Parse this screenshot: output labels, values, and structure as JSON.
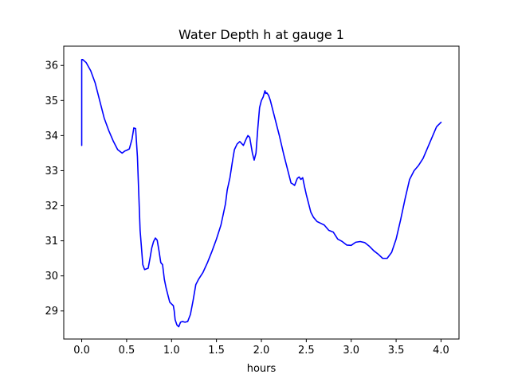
{
  "chart_data": {
    "type": "line",
    "title": "Water Depth h at gauge 1",
    "xlabel": "hours",
    "ylabel": "",
    "xlim": [
      -0.2,
      4.2
    ],
    "ylim": [
      28.2,
      36.55
    ],
    "xticks": [
      0.0,
      0.5,
      1.0,
      1.5,
      2.0,
      2.5,
      3.0,
      3.5,
      4.0
    ],
    "xtick_labels": [
      "0.0",
      "0.5",
      "1.0",
      "1.5",
      "2.0",
      "2.5",
      "3.0",
      "3.5",
      "4.0"
    ],
    "yticks": [
      29,
      30,
      31,
      32,
      33,
      34,
      35,
      36
    ],
    "ytick_labels": [
      "29",
      "30",
      "31",
      "32",
      "33",
      "34",
      "35",
      "36"
    ],
    "grid": false,
    "legend": "none",
    "series": [
      {
        "color": "#0000ff",
        "x": [
          0.0,
          0.0,
          0.01,
          0.05,
          0.1,
          0.15,
          0.2,
          0.25,
          0.3,
          0.35,
          0.4,
          0.45,
          0.48,
          0.5,
          0.53,
          0.56,
          0.58,
          0.6,
          0.62,
          0.65,
          0.68,
          0.7,
          0.72,
          0.74,
          0.76,
          0.78,
          0.8,
          0.82,
          0.84,
          0.86,
          0.88,
          0.9,
          0.92,
          0.94,
          0.96,
          0.98,
          1.0,
          1.02,
          1.03,
          1.04,
          1.06,
          1.08,
          1.1,
          1.12,
          1.15,
          1.18,
          1.21,
          1.24,
          1.27,
          1.3,
          1.35,
          1.4,
          1.45,
          1.5,
          1.55,
          1.6,
          1.62,
          1.65,
          1.68,
          1.7,
          1.73,
          1.76,
          1.8,
          1.83,
          1.85,
          1.87,
          1.9,
          1.92,
          1.94,
          1.96,
          1.98,
          2.0,
          2.02,
          2.04,
          2.05,
          2.06,
          2.08,
          2.1,
          2.13,
          2.16,
          2.2,
          2.25,
          2.3,
          2.33,
          2.35,
          2.37,
          2.4,
          2.42,
          2.44,
          2.46,
          2.48,
          2.5,
          2.52,
          2.55,
          2.58,
          2.62,
          2.66,
          2.7,
          2.75,
          2.8,
          2.85,
          2.9,
          2.95,
          3.0,
          3.05,
          3.1,
          3.15,
          3.2,
          3.25,
          3.3,
          3.35,
          3.4,
          3.45,
          3.5,
          3.55,
          3.6,
          3.65,
          3.7,
          3.75,
          3.8,
          3.85,
          3.9,
          3.95,
          4.0
        ],
        "y": [
          33.72,
          36.17,
          36.17,
          36.08,
          35.85,
          35.5,
          35.0,
          34.5,
          34.15,
          33.85,
          33.6,
          33.5,
          33.56,
          33.58,
          33.62,
          33.9,
          34.22,
          34.2,
          33.4,
          31.3,
          30.32,
          30.18,
          30.2,
          30.22,
          30.5,
          30.8,
          30.98,
          31.08,
          31.02,
          30.72,
          30.38,
          30.32,
          29.9,
          29.65,
          29.45,
          29.25,
          29.2,
          29.15,
          29.0,
          28.75,
          28.6,
          28.55,
          28.68,
          28.7,
          28.68,
          28.7,
          28.9,
          29.3,
          29.75,
          29.9,
          30.1,
          30.38,
          30.7,
          31.05,
          31.45,
          32.05,
          32.45,
          32.8,
          33.3,
          33.6,
          33.76,
          33.83,
          33.72,
          33.9,
          34.0,
          33.95,
          33.5,
          33.3,
          33.5,
          34.2,
          34.8,
          35.0,
          35.1,
          35.28,
          35.2,
          35.22,
          35.15,
          35.0,
          34.7,
          34.4,
          34.0,
          33.45,
          32.95,
          32.65,
          32.62,
          32.58,
          32.78,
          32.82,
          32.75,
          32.8,
          32.55,
          32.32,
          32.12,
          31.82,
          31.67,
          31.55,
          31.5,
          31.45,
          31.3,
          31.25,
          31.05,
          30.98,
          30.88,
          30.87,
          30.96,
          30.98,
          30.95,
          30.85,
          30.72,
          30.62,
          30.5,
          30.5,
          30.67,
          31.05,
          31.6,
          32.2,
          32.75,
          33.0,
          33.15,
          33.35,
          33.65,
          33.95,
          34.25,
          34.38
        ]
      }
    ]
  }
}
